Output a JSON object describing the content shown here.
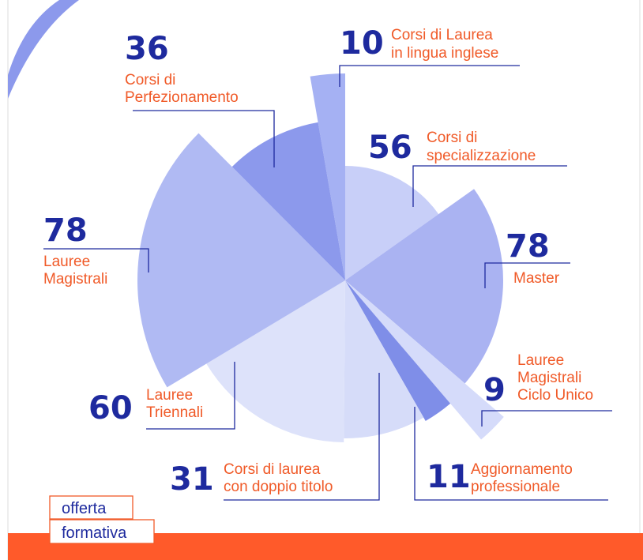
{
  "chart_data": {
    "type": "polar",
    "categories": [
      [
        "Corsi di Laurea",
        "in lingua inglese"
      ],
      [
        "Corsi di",
        "specializzazione"
      ],
      [
        "Master"
      ],
      [
        "Lauree",
        "Magistrali",
        "Ciclo Unico"
      ],
      [
        "Aggiornamento",
        "professionale"
      ],
      [
        "Corsi di laurea",
        "con doppio titolo"
      ],
      [
        "Lauree",
        "Triennali"
      ],
      [
        "Lauree",
        "Magistrali"
      ],
      [
        "Corsi di",
        "Perfezionamento"
      ]
    ],
    "values": [
      10,
      56,
      78,
      9,
      11,
      31,
      60,
      78,
      36
    ],
    "colors": [
      "#a5b1f3",
      "#c8cff8",
      "#aab3f2",
      "#d5dbfa",
      "#7f8ee8",
      "#d6dcf9",
      "#dde2fa",
      "#b0baf3",
      "#8c99ec"
    ]
  },
  "badge": [
    "offerta",
    "formativa"
  ]
}
